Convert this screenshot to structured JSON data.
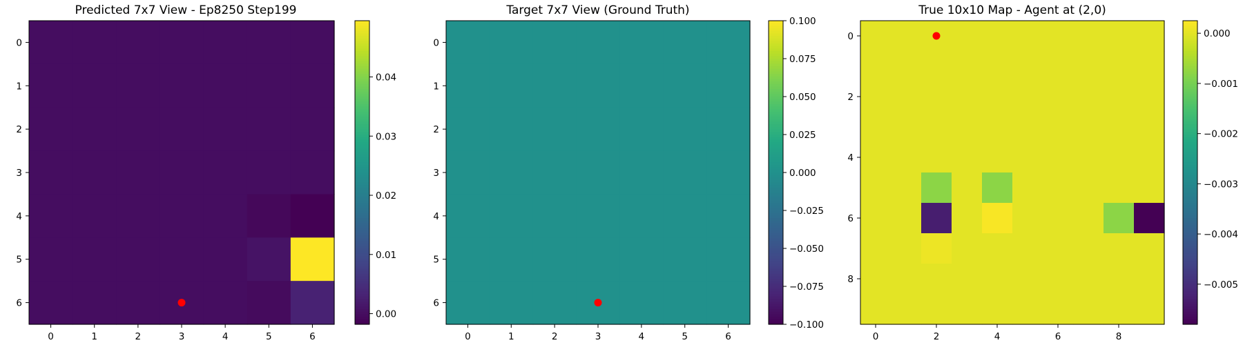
{
  "chart_data": [
    {
      "type": "heatmap",
      "title": "Predicted 7x7 View - Ep8250 Step199",
      "rows": 7,
      "cols": 7,
      "x_ticks": [
        0,
        1,
        2,
        3,
        4,
        5,
        6
      ],
      "y_ticks": [
        0,
        1,
        2,
        3,
        4,
        5,
        6
      ],
      "values": [
        [
          0.0,
          0.0,
          0.0,
          0.0,
          0.0,
          0.0,
          0.0
        ],
        [
          0.0,
          0.0,
          0.0,
          0.0,
          0.0,
          0.0,
          0.0
        ],
        [
          0.0,
          0.0,
          0.0,
          0.0,
          0.0,
          0.0,
          0.0
        ],
        [
          0.0,
          0.0,
          0.0,
          0.0,
          0.0,
          0.0,
          0.0
        ],
        [
          0.0,
          0.0,
          0.0,
          0.0,
          0.0,
          -0.0008,
          -0.0018
        ],
        [
          0.0,
          0.0,
          0.0,
          0.0,
          0.0,
          0.0008,
          0.0495
        ],
        [
          0.0,
          0.0,
          0.0,
          0.0,
          0.0,
          -0.0004,
          0.003
        ]
      ],
      "vmin": -0.0018,
      "vmax": 0.0495,
      "colorbar_ticks": [
        0.0,
        0.01,
        0.02,
        0.03,
        0.04
      ],
      "colorbar_labels": [
        "0.00",
        "0.01",
        "0.02",
        "0.03",
        "0.04"
      ],
      "agent": {
        "x": 3,
        "y": 6
      },
      "agent_color": "#ff0000"
    },
    {
      "type": "heatmap",
      "title": "Target 7x7 View (Ground Truth)",
      "rows": 7,
      "cols": 7,
      "x_ticks": [
        0,
        1,
        2,
        3,
        4,
        5,
        6
      ],
      "y_ticks": [
        0,
        1,
        2,
        3,
        4,
        5,
        6
      ],
      "values": [
        [
          0,
          0,
          0,
          0,
          0,
          0,
          0
        ],
        [
          0,
          0,
          0,
          0,
          0,
          0,
          0
        ],
        [
          0,
          0,
          0,
          0,
          0,
          0,
          0
        ],
        [
          0,
          0,
          0,
          0,
          0,
          0,
          0
        ],
        [
          0,
          0,
          0,
          0,
          0,
          0,
          0
        ],
        [
          0,
          0,
          0,
          0,
          0,
          0,
          0
        ],
        [
          0,
          0,
          0,
          0,
          0,
          0,
          0
        ]
      ],
      "vmin": -0.1,
      "vmax": 0.1,
      "colorbar_ticks": [
        0.1,
        0.075,
        0.05,
        0.025,
        0.0,
        -0.025,
        -0.05,
        -0.075,
        -0.1
      ],
      "colorbar_labels": [
        "0.100",
        "0.075",
        "0.050",
        "0.025",
        "0.000",
        "−0.025",
        "−0.050",
        "−0.075",
        "−0.100"
      ],
      "agent": {
        "x": 3,
        "y": 6
      },
      "agent_color": "#ff0000"
    },
    {
      "type": "heatmap",
      "title": "True 10x10 Map - Agent at (2,0)",
      "rows": 10,
      "cols": 10,
      "x_ticks": [
        0,
        2,
        4,
        6,
        8
      ],
      "y_ticks": [
        0,
        2,
        4,
        6,
        8
      ],
      "values": [
        [
          0,
          0,
          0,
          0,
          0,
          0,
          0,
          0,
          0,
          0
        ],
        [
          0,
          0,
          0,
          0,
          0,
          0,
          0,
          0,
          0,
          0
        ],
        [
          0,
          0,
          0,
          0,
          0,
          0,
          0,
          0,
          0,
          0
        ],
        [
          0,
          0,
          0,
          0,
          0,
          0,
          0,
          0,
          0,
          0
        ],
        [
          0,
          0,
          0,
          0,
          0,
          0,
          0,
          0,
          0,
          0
        ],
        [
          0,
          0,
          -0.0008,
          0,
          -0.0008,
          0,
          0,
          0,
          0,
          0
        ],
        [
          0,
          0,
          -0.0053,
          0,
          0.0002,
          0,
          0,
          0,
          -0.0008,
          -0.0058
        ],
        [
          0,
          0,
          0.0001,
          0,
          0,
          0,
          0,
          0,
          0,
          0
        ],
        [
          0,
          0,
          0,
          0,
          0,
          0,
          0,
          0,
          0,
          0
        ],
        [
          0,
          0,
          0,
          0,
          0,
          0,
          0,
          0,
          0,
          0
        ]
      ],
      "vmin": -0.0058,
      "vmax": 0.00025,
      "colorbar_ticks": [
        0.0,
        -0.001,
        -0.002,
        -0.003,
        -0.004,
        -0.005
      ],
      "colorbar_labels": [
        "0.000",
        "−0.001",
        "−0.002",
        "−0.003",
        "−0.004",
        "−0.005"
      ],
      "agent": {
        "x": 2,
        "y": 0
      },
      "agent_color": "#ff0000"
    }
  ]
}
